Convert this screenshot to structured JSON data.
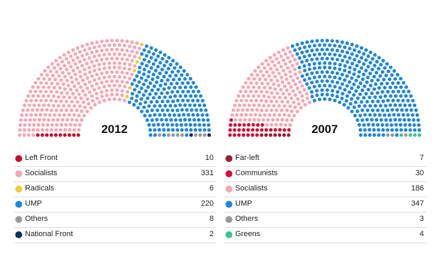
{
  "chart_data": [
    {
      "type": "parliament",
      "title": "2012",
      "series": [
        {
          "name": "Left Front",
          "value": 10,
          "color": "#c8102e"
        },
        {
          "name": "Socialists",
          "value": 331,
          "color": "#f4a7b5"
        },
        {
          "name": "Radicals",
          "value": 6,
          "color": "#f2cb3a"
        },
        {
          "name": "UMP",
          "value": 220,
          "color": "#1f87d6"
        },
        {
          "name": "Others",
          "value": 8,
          "color": "#999999"
        },
        {
          "name": "National Front",
          "value": 2,
          "color": "#0b2d5c"
        }
      ]
    },
    {
      "type": "parliament",
      "title": "2007",
      "series": [
        {
          "name": "Far-left",
          "value": 7,
          "color": "#9e1b32"
        },
        {
          "name": "Communists",
          "value": 30,
          "color": "#d0103a"
        },
        {
          "name": "Socialists",
          "value": 186,
          "color": "#f4a7b5"
        },
        {
          "name": "UMP",
          "value": 347,
          "color": "#1f87d6"
        },
        {
          "name": "Others",
          "value": 3,
          "color": "#999999"
        },
        {
          "name": "Greens",
          "value": 4,
          "color": "#3cc48f"
        }
      ]
    }
  ]
}
